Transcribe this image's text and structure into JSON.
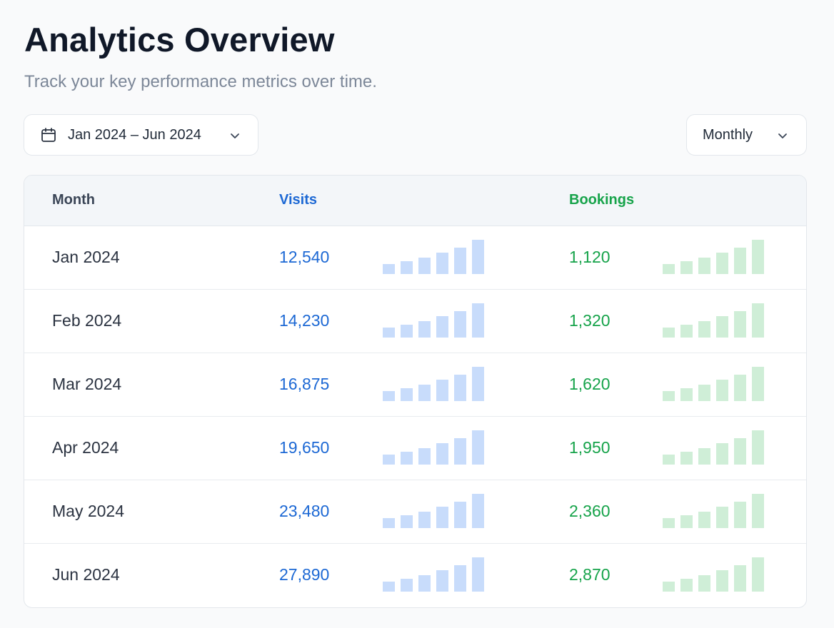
{
  "header": {
    "title": "Analytics Overview",
    "subtitle": "Track your key performance metrics over time."
  },
  "filters": {
    "date_range": {
      "label": "Jan 2024 – Jun 2024",
      "icon": "calendar-icon"
    },
    "period": {
      "label": "Monthly",
      "icon": "chevron-down-icon"
    }
  },
  "table": {
    "columns": {
      "month": "Month",
      "visits": "Visits",
      "bookings": "Bookings"
    },
    "rows": [
      {
        "month": "Jan 2024",
        "visits": "12,540",
        "bookings": "1,120"
      },
      {
        "month": "Feb 2024",
        "visits": "14,230",
        "bookings": "1,320"
      },
      {
        "month": "Mar 2024",
        "visits": "16,875",
        "bookings": "1,620"
      },
      {
        "month": "Apr 2024",
        "visits": "19,650",
        "bookings": "1,950"
      },
      {
        "month": "May 2024",
        "visits": "23,480",
        "bookings": "2,360"
      },
      {
        "month": "Jun 2024",
        "visits": "27,890",
        "bookings": "2,870"
      }
    ],
    "sparkline_levels": [
      0.3,
      0.38,
      0.48,
      0.62,
      0.78,
      1.0
    ]
  },
  "colors": {
    "visits": "#1c68d4",
    "visits_bar": "#c8dcfb",
    "bookings": "#16a34a",
    "bookings_bar": "#cfeed7"
  }
}
